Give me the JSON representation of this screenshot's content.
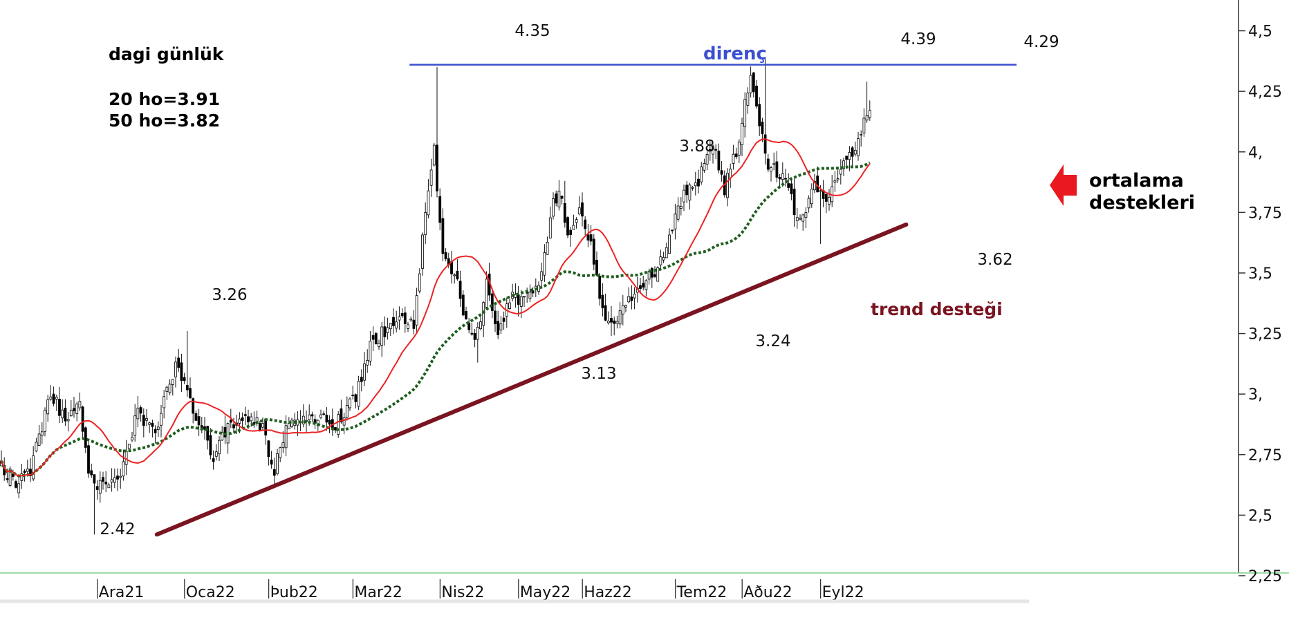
{
  "chart_data": {
    "type": "candlestick",
    "title": "dagi günlük",
    "moving_averages": [
      {
        "name": "20 ho",
        "label": "20 ho=3.91",
        "last": 3.91,
        "color": "#ee2222",
        "style": "solid"
      },
      {
        "name": "50 ho",
        "label": "50 ho=3.82",
        "last": 3.82,
        "color": "#1f5e1f",
        "style": "dotted"
      }
    ],
    "y_axis": {
      "range": [
        2.2,
        4.6
      ],
      "ticks": [
        2.25,
        2.5,
        2.75,
        3.0,
        3.25,
        3.5,
        3.75,
        4.0,
        4.25,
        4.5
      ],
      "tick_labels": [
        "2,25",
        "2,5",
        "2,75",
        "3,",
        "3,25",
        "3,5",
        "3,75",
        "4,",
        "4,25",
        "4,5"
      ],
      "side": "right"
    },
    "x_axis": {
      "tick_labels": [
        "Ara21",
        "Oca22",
        "Þub22",
        "Mar22",
        "Nis22",
        "May22",
        "Haz22",
        "Tem22",
        "Aðu22",
        "Eyl22"
      ],
      "tick_bar_index": [
        14,
        44,
        73,
        102,
        132,
        159,
        181,
        213,
        236,
        263
      ]
    },
    "bars_count": 300,
    "anchors": [
      {
        "i": 0,
        "c": 2.7
      },
      {
        "i": 6,
        "c": 2.63
      },
      {
        "i": 10,
        "c": 2.68
      },
      {
        "i": 17,
        "c": 3.0
      },
      {
        "i": 22,
        "c": 2.9
      },
      {
        "i": 27,
        "c": 2.95
      },
      {
        "i": 30,
        "c": 2.65
      },
      {
        "i": 34,
        "c": 2.62
      },
      {
        "i": 40,
        "c": 2.65
      },
      {
        "i": 47,
        "c": 2.92
      },
      {
        "i": 53,
        "c": 2.84
      },
      {
        "i": 57,
        "c": 3.05
      },
      {
        "i": 61,
        "c": 3.12
      },
      {
        "i": 67,
        "c": 2.9
      },
      {
        "i": 73,
        "c": 2.75
      },
      {
        "i": 79,
        "c": 2.88
      },
      {
        "i": 86,
        "c": 2.9
      },
      {
        "i": 90,
        "c": 2.85
      },
      {
        "i": 94,
        "c": 2.68
      },
      {
        "i": 99,
        "c": 2.9
      },
      {
        "i": 105,
        "c": 2.9
      },
      {
        "i": 115,
        "c": 2.88
      },
      {
        "i": 122,
        "c": 2.98
      },
      {
        "i": 127,
        "c": 3.2
      },
      {
        "i": 131,
        "c": 3.25
      },
      {
        "i": 137,
        "c": 3.3
      },
      {
        "i": 142,
        "c": 3.3
      },
      {
        "i": 146,
        "c": 3.75
      },
      {
        "i": 149,
        "c": 4.0
      },
      {
        "i": 152,
        "c": 3.6
      },
      {
        "i": 156,
        "c": 3.5
      },
      {
        "i": 160,
        "c": 3.3
      },
      {
        "i": 163,
        "c": 3.2
      },
      {
        "i": 167,
        "c": 3.45
      },
      {
        "i": 171,
        "c": 3.25
      },
      {
        "i": 175,
        "c": 3.4
      },
      {
        "i": 180,
        "c": 3.38
      },
      {
        "i": 185,
        "c": 3.45
      },
      {
        "i": 190,
        "c": 3.78
      },
      {
        "i": 192,
        "c": 3.85
      },
      {
        "i": 195,
        "c": 3.65
      },
      {
        "i": 199,
        "c": 3.75
      },
      {
        "i": 203,
        "c": 3.62
      },
      {
        "i": 207,
        "c": 3.35
      },
      {
        "i": 211,
        "c": 3.28
      },
      {
        "i": 216,
        "c": 3.38
      },
      {
        "i": 220,
        "c": 3.42
      },
      {
        "i": 224,
        "c": 3.5
      },
      {
        "i": 228,
        "c": 3.55
      },
      {
        "i": 232,
        "c": 3.75
      },
      {
        "i": 236,
        "c": 3.85
      },
      {
        "i": 240,
        "c": 3.88
      },
      {
        "i": 245,
        "c": 4.05
      },
      {
        "i": 249,
        "c": 3.85
      },
      {
        "i": 253,
        "c": 4.0
      },
      {
        "i": 256,
        "c": 4.2
      },
      {
        "i": 258,
        "c": 4.32
      },
      {
        "i": 261,
        "c": 4.12
      },
      {
        "i": 264,
        "c": 3.95
      },
      {
        "i": 268,
        "c": 3.9
      },
      {
        "i": 271,
        "c": 3.85
      },
      {
        "i": 274,
        "c": 3.72
      },
      {
        "i": 277,
        "c": 3.75
      },
      {
        "i": 280,
        "c": 3.85
      },
      {
        "i": 283,
        "c": 3.8
      },
      {
        "i": 287,
        "c": 3.88
      },
      {
        "i": 290,
        "c": 3.95
      },
      {
        "i": 294,
        "c": 4.0
      },
      {
        "i": 297,
        "c": 4.15
      },
      {
        "i": 299,
        "c": 4.18
      }
    ],
    "pinned_highs": [
      {
        "i": 150,
        "h": 4.35
      },
      {
        "i": 263,
        "h": 4.39
      },
      {
        "i": 298,
        "h": 4.29
      },
      {
        "i": 194,
        "h": 3.88
      },
      {
        "i": 64,
        "h": 3.26
      }
    ],
    "pinned_lows": [
      {
        "i": 32,
        "l": 2.42
      },
      {
        "i": 164,
        "l": 3.13
      },
      {
        "i": 210,
        "l": 3.24
      },
      {
        "i": 282,
        "l": 3.62
      }
    ],
    "resistance": {
      "label": "direnç",
      "value": 4.36,
      "from_i": 141,
      "to_i": 350,
      "color": "#3b4fcf"
    },
    "trend_support": {
      "label": "trend desteği",
      "from": {
        "i": 54,
        "v": 2.42
      },
      "to": {
        "i": 312,
        "v": 3.7
      },
      "color": "#7a1420"
    },
    "price_annotations": [
      {
        "text": "4.35",
        "i": 150,
        "v": 4.35
      },
      {
        "text": "4.39",
        "i": 263,
        "v": 4.39
      },
      {
        "text": "4.29",
        "i": 298,
        "v": 4.29
      },
      {
        "text": "3.88",
        "i": 194,
        "v": 3.88
      },
      {
        "text": "3.26",
        "i": 64,
        "v": 3.26
      },
      {
        "text": "2.42",
        "i": 32,
        "v": 2.42
      },
      {
        "text": "3.13",
        "i": 164,
        "v": 3.13
      },
      {
        "text": "3.24",
        "i": 210,
        "v": 3.24
      },
      {
        "text": "3.62",
        "i": 282,
        "v": 3.62
      }
    ],
    "callout": {
      "line1": "ortalama",
      "line2": "destekleri",
      "arrow_color": "#e8191f"
    },
    "grid": false,
    "legend": "top-left"
  }
}
